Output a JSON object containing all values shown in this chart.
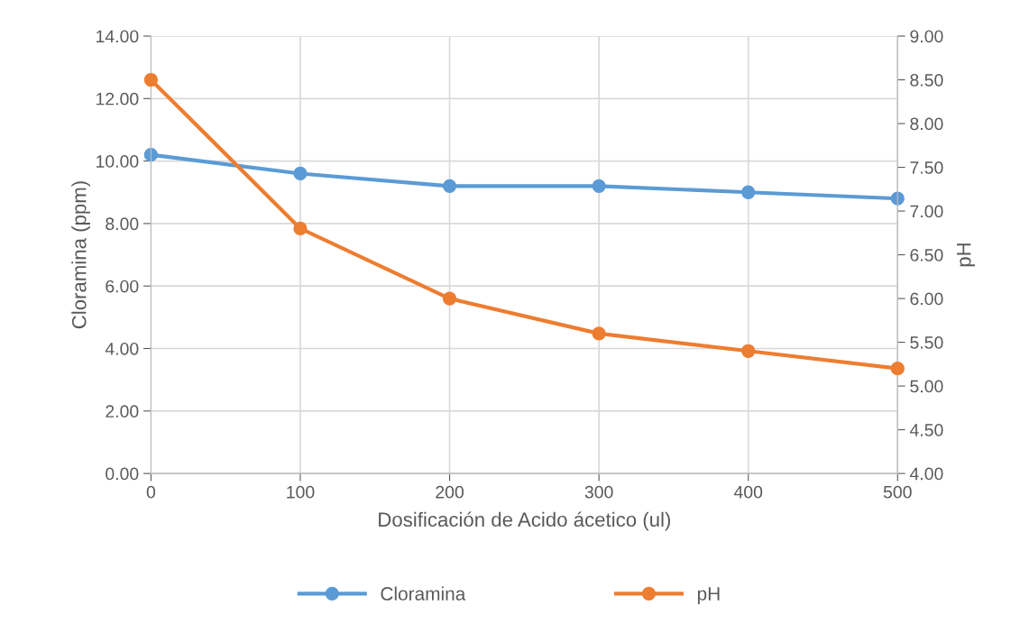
{
  "chart_data": {
    "type": "line",
    "xlabel": "Dosificación de Acido ácetico (ul)",
    "ylabel": "Cloramina (ppm)",
    "y2label": "pH",
    "x": [
      0,
      100,
      200,
      300,
      400,
      500
    ],
    "series": [
      {
        "name": "Cloramina",
        "color": "#5b9bd5",
        "values": [
          10.2,
          9.6,
          9.2,
          9.2,
          9.0,
          8.8
        ]
      },
      {
        "name": "pH",
        "color": "#ed7d31",
        "values": [
          8.5,
          6.8,
          6.0,
          5.6,
          5.4,
          5.2
        ],
        "axis": "y2"
      }
    ],
    "xlim": [
      0,
      500
    ],
    "xticks": [
      0,
      100,
      200,
      300,
      400,
      500
    ],
    "ylim": [
      0,
      14
    ],
    "yticks": [
      {
        "value": 0,
        "label": "0.00"
      },
      {
        "value": 2,
        "label": "2.00"
      },
      {
        "value": 4,
        "label": "4.00"
      },
      {
        "value": 6,
        "label": "6.00"
      },
      {
        "value": 8,
        "label": "8.00"
      },
      {
        "value": 10,
        "label": "10.00"
      },
      {
        "value": 12,
        "label": "12.00"
      },
      {
        "value": 14,
        "label": "14.00"
      }
    ],
    "y2lim": [
      4,
      9
    ],
    "y2ticks": [
      {
        "value": 4,
        "label": "4.00"
      },
      {
        "value": 4.5,
        "label": "4.50"
      },
      {
        "value": 5,
        "label": "5.00"
      },
      {
        "value": 5.5,
        "label": "5.50"
      },
      {
        "value": 6,
        "label": "6.00"
      },
      {
        "value": 6.5,
        "label": "6.50"
      },
      {
        "value": 7,
        "label": "7.00"
      },
      {
        "value": 7.5,
        "label": "7.50"
      },
      {
        "value": 8,
        "label": "8.00"
      },
      {
        "value": 8.5,
        "label": "8.50"
      },
      {
        "value": 9,
        "label": "9.00"
      }
    ],
    "grid": true,
    "legend": "bottom",
    "marker": "circle",
    "line_style": "solid"
  }
}
